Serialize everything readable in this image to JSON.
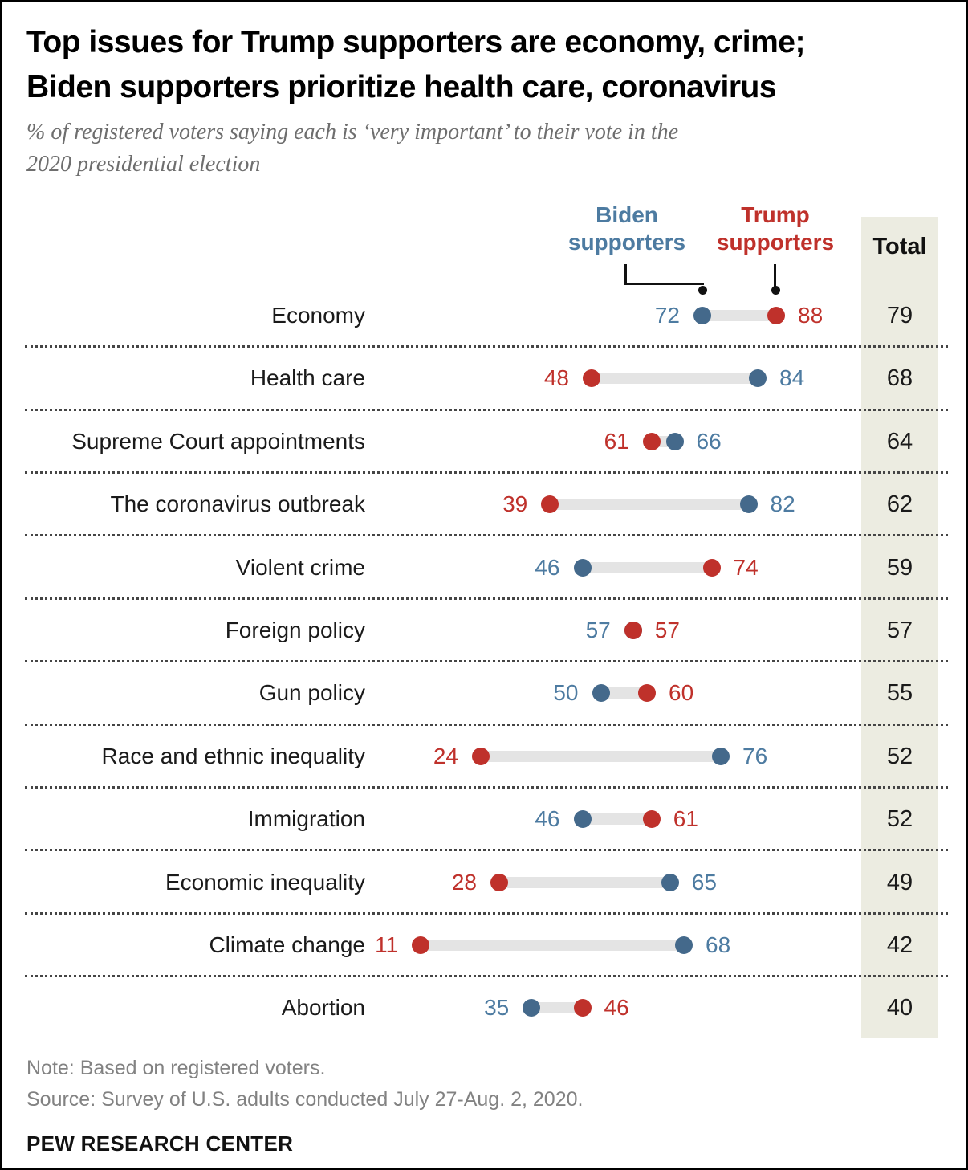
{
  "title": {
    "line1": "Top issues for Trump supporters are economy, crime;",
    "line2": "Biden supporters prioritize health care, coronavirus"
  },
  "subtitle": {
    "line1": "% of registered voters saying each is ‘very important’ to their vote in the",
    "line2": "2020 presidential election"
  },
  "legend": {
    "biden_label": "Biden supporters",
    "trump_label": "Trump supporters",
    "total_label": "Total"
  },
  "colors": {
    "biden_dot": "#44698b",
    "biden_text": "#4d7ba1",
    "trump": "#bf312b",
    "bar": "#e4e4e4",
    "total_bg": "#ecece1",
    "black_dot": "#111111"
  },
  "chart_data": {
    "type": "dumbbell",
    "units": "% saying very important",
    "value_range": [
      0,
      100
    ],
    "categories": [
      "Economy",
      "Health care",
      "Supreme Court appointments",
      "The coronavirus outbreak",
      "Violent crime",
      "Foreign policy",
      "Gun policy",
      "Race and ethnic inequality",
      "Immigration",
      "Economic inequality",
      "Climate change",
      "Abortion"
    ],
    "series": [
      {
        "name": "Biden supporters",
        "values": [
          72,
          84,
          66,
          82,
          46,
          57,
          50,
          76,
          46,
          65,
          68,
          35
        ]
      },
      {
        "name": "Trump supporters",
        "values": [
          88,
          48,
          61,
          39,
          74,
          57,
          60,
          24,
          61,
          28,
          11,
          46
        ]
      },
      {
        "name": "Total",
        "values": [
          79,
          68,
          64,
          62,
          59,
          57,
          55,
          52,
          52,
          49,
          42,
          40
        ]
      }
    ],
    "title": "Top issues for Trump supporters are economy, crime; Biden supporters prioritize health care, coronavirus",
    "legend_position": "top"
  },
  "footer": {
    "note": "Note: Based on registered voters.",
    "source": "Source: Survey of U.S. adults conducted July 27-Aug. 2, 2020.",
    "brand": "PEW RESEARCH CENTER"
  }
}
